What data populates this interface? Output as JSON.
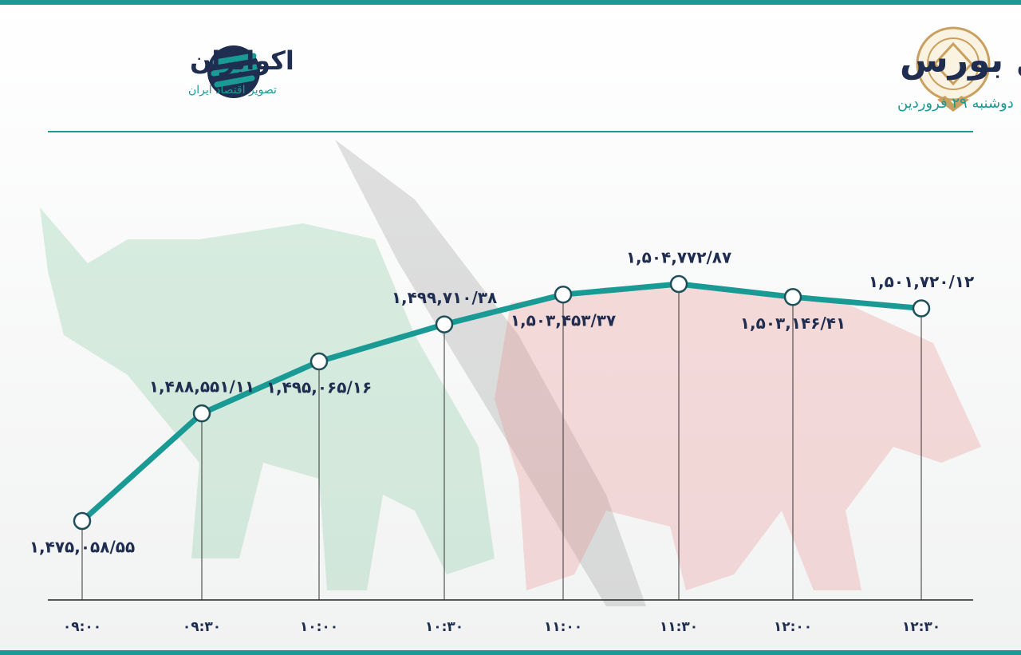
{
  "chart_data": {
    "type": "line",
    "title": "روند شاخص کل بورس",
    "subtitle": "دوشنبه ۲۹ فروردین",
    "brand": "اکوایران",
    "brand_tagline": "تصویر اقتصاد ایران",
    "categories": [
      "۰۹:۰۰",
      "۰۹:۳۰",
      "۱۰:۰۰",
      "۱۰:۳۰",
      "۱۱:۰۰",
      "۱۱:۳۰",
      "۱۲:۰۰",
      "۱۲:۳۰"
    ],
    "values": [
      1475058.55,
      1488551.11,
      1495065.16,
      1499710.38,
      1503453.37,
      1504772.87,
      1503146.41,
      1501720.12
    ],
    "value_labels": [
      "۱,۴۷۵,۰۵۸/۵۵",
      "۱,۴۸۸,۵۵۱/۱۱",
      "۱,۴۹۵,۰۶۵/۱۶",
      "۱,۴۹۹,۷۱۰/۳۸",
      "۱,۵۰۳,۴۵۳/۳۷",
      "۱,۵۰۴,۷۷۲/۸۷",
      "۱,۵۰۳,۱۴۶/۴۱",
      "۱,۵۰۱,۷۲۰/۱۲"
    ],
    "color": "#1a9a94"
  }
}
